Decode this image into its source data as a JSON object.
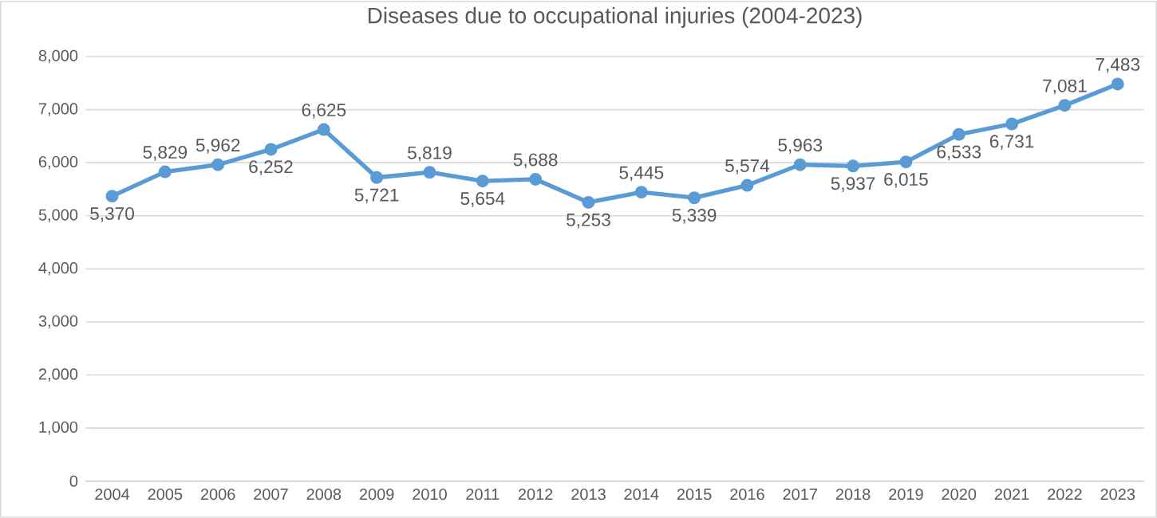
{
  "chart_data": {
    "type": "line",
    "title": "Diseases due to occupational injuries (2004-2023)",
    "categories": [
      "2004",
      "2005",
      "2006",
      "2007",
      "2008",
      "2009",
      "2010",
      "2011",
      "2012",
      "2013",
      "2014",
      "2015",
      "2016",
      "2017",
      "2018",
      "2019",
      "2020",
      "2021",
      "2022",
      "2023"
    ],
    "series": [
      {
        "color": "#5b9bd5",
        "values": [
          5370,
          5829,
          5962,
          6252,
          6625,
          5721,
          5819,
          5654,
          5688,
          5253,
          5445,
          5339,
          5574,
          5963,
          5937,
          6015,
          6533,
          6731,
          7081,
          7483
        ],
        "value_labels": [
          "5,370",
          "5,829",
          "5,962",
          "6,252",
          "6,625",
          "5,721",
          "5,819",
          "5,654",
          "5,688",
          "5,253",
          "5,445",
          "5,339",
          "5,574",
          "5,963",
          "5,937",
          "6,015",
          "6,533",
          "6,731",
          "7,081",
          "7,483"
        ]
      }
    ],
    "ylim": [
      0,
      8000
    ],
    "yticks": [
      {
        "value": 0,
        "label": "0"
      },
      {
        "value": 1000,
        "label": "1,000"
      },
      {
        "value": 2000,
        "label": "2,000"
      },
      {
        "value": 3000,
        "label": "3,000"
      },
      {
        "value": 4000,
        "label": "4,000"
      },
      {
        "value": 5000,
        "label": "5,000"
      },
      {
        "value": 6000,
        "label": "6,000"
      },
      {
        "value": 7000,
        "label": "7,000"
      },
      {
        "value": 8000,
        "label": "8,000"
      }
    ],
    "grid": "y",
    "legend": false,
    "marker": "circle",
    "line_style": "solid"
  }
}
